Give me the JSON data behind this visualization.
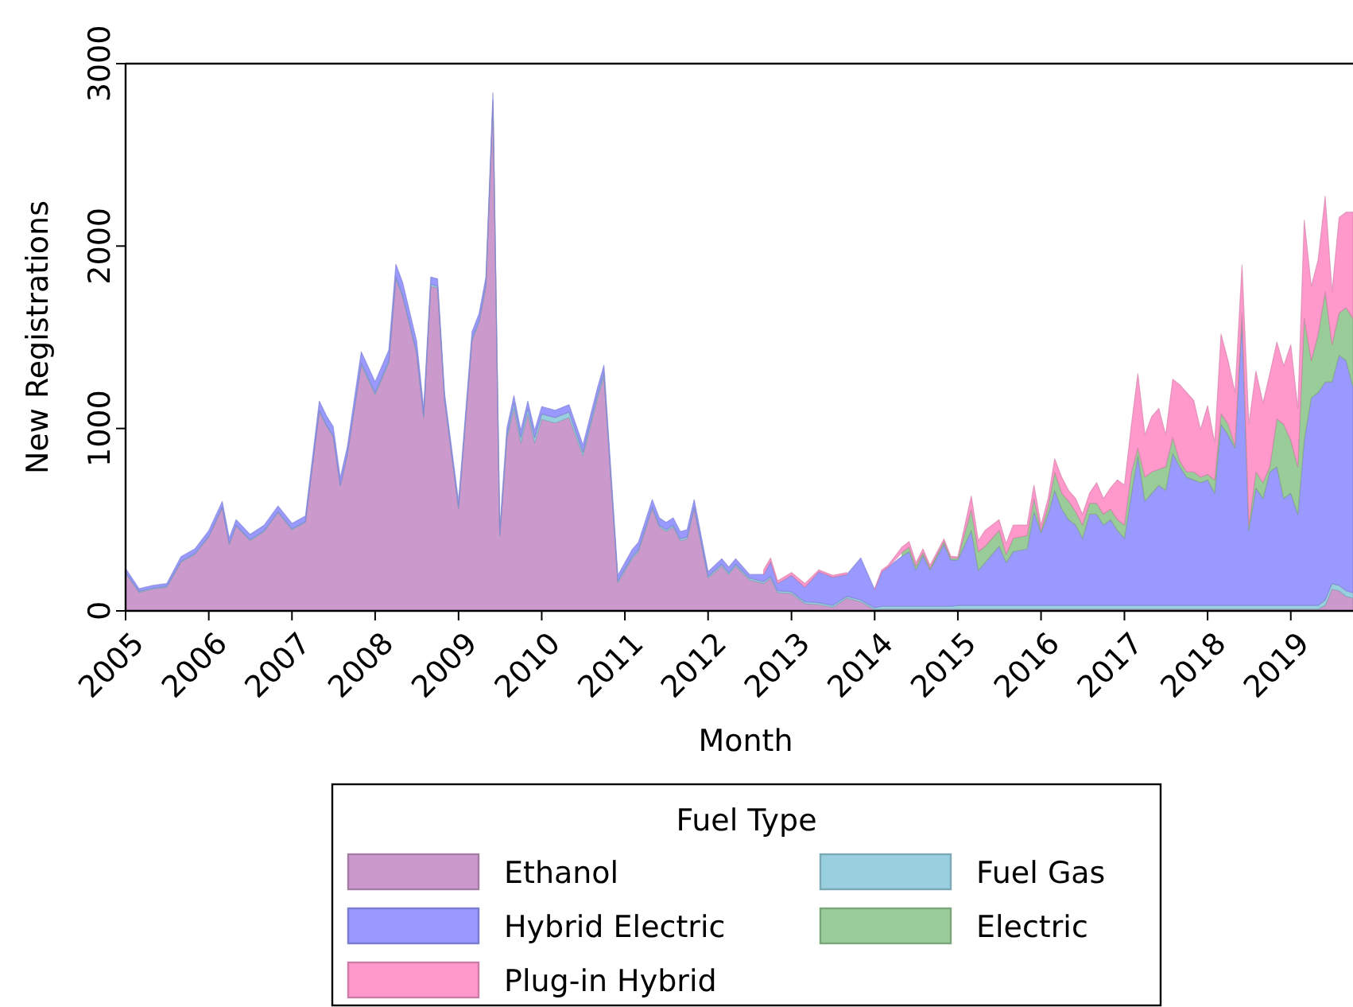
{
  "chart_data": {
    "type": "area",
    "stacked": true,
    "xlabel": "Month",
    "ylabel": "New Registrations",
    "legend_title": "Fuel Type",
    "legend": "bottom",
    "grid": false,
    "xlim": [
      "2005-01",
      "2019-10"
    ],
    "ylim": [
      0,
      3000
    ],
    "xticks": [
      "2005",
      "2006",
      "2007",
      "2008",
      "2009",
      "2010",
      "2011",
      "2012",
      "2013",
      "2014",
      "2015",
      "2016",
      "2017",
      "2018",
      "2019"
    ],
    "yticks": [
      0,
      1000,
      2000,
      3000
    ],
    "x": [
      "2005-01",
      "2005-03",
      "2005-05",
      "2005-07",
      "2005-09",
      "2005-11",
      "2006-01",
      "2006-03",
      "2006-04",
      "2006-05",
      "2006-07",
      "2006-09",
      "2006-11",
      "2007-01",
      "2007-03",
      "2007-05",
      "2007-06",
      "2007-07",
      "2007-08",
      "2007-09",
      "2007-11",
      "2008-01",
      "2008-03",
      "2008-04",
      "2008-05",
      "2008-07",
      "2008-08",
      "2008-09",
      "2008-10",
      "2008-11",
      "2009-01",
      "2009-03",
      "2009-04",
      "2009-05",
      "2009-06",
      "2009-07",
      "2009-08",
      "2009-09",
      "2009-10",
      "2009-11",
      "2009-12",
      "2010-01",
      "2010-03",
      "2010-05",
      "2010-07",
      "2010-09",
      "2010-10",
      "2010-12",
      "2011-02",
      "2011-03",
      "2011-05",
      "2011-06",
      "2011-07",
      "2011-08",
      "2011-09",
      "2011-10",
      "2011-11",
      "2012-01",
      "2012-03",
      "2012-04",
      "2012-05",
      "2012-07",
      "2012-09",
      "2012-10",
      "2012-11",
      "2013-01",
      "2013-03",
      "2013-05",
      "2013-07",
      "2013-09",
      "2013-11",
      "2014-01",
      "2014-02",
      "2014-03",
      "2014-05",
      "2014-06",
      "2014-07",
      "2014-08",
      "2014-09",
      "2014-11",
      "2014-12",
      "2015-01",
      "2015-03",
      "2015-04",
      "2015-05",
      "2015-07",
      "2015-08",
      "2015-09",
      "2015-11",
      "2015-12",
      "2016-01",
      "2016-02",
      "2016-03",
      "2016-04",
      "2016-05",
      "2016-06",
      "2016-07",
      "2016-08",
      "2016-09",
      "2016-10",
      "2016-11",
      "2016-12",
      "2017-01",
      "2017-02",
      "2017-03",
      "2017-04",
      "2017-05",
      "2017-06",
      "2017-07",
      "2017-08",
      "2017-09",
      "2017-10",
      "2017-11",
      "2017-12",
      "2018-01",
      "2018-02",
      "2018-03",
      "2018-04",
      "2018-05",
      "2018-06",
      "2018-07",
      "2018-08",
      "2018-09",
      "2018-10",
      "2018-11",
      "2018-12",
      "2019-01",
      "2019-02",
      "2019-03",
      "2019-04",
      "2019-05",
      "2019-06",
      "2019-07",
      "2019-08",
      "2019-09",
      "2019-10"
    ],
    "series": [
      {
        "name": "Ethanol",
        "color": "#cc99cc",
        "values": [
          208,
          102,
          120,
          130,
          267,
          310,
          405,
          565,
          365,
          465,
          385,
          435,
          540,
          445,
          485,
          1095,
          1015,
          955,
          685,
          855,
          1350,
          1186,
          1360,
          1820,
          1720,
          1410,
          1060,
          1780,
          1770,
          1150,
          560,
          1480,
          1580,
          1780,
          2790,
          410,
          940,
          1110,
          920,
          1080,
          920,
          1050,
          1030,
          1060,
          850,
          1156,
          1287,
          155,
          285,
          325,
          560,
          460,
          435,
          460,
          385,
          395,
          560,
          180,
          246,
          200,
          246,
          170,
          150,
          180,
          100,
          95,
          40,
          35,
          20,
          70,
          50,
          7,
          10,
          10,
          10,
          10,
          10,
          10,
          10,
          10,
          10,
          10,
          10,
          10,
          10,
          10,
          10,
          10,
          10,
          10,
          10,
          10,
          10,
          10,
          10,
          10,
          10,
          10,
          10,
          10,
          10,
          10,
          10,
          10,
          10,
          10,
          10,
          10,
          10,
          10,
          10,
          10,
          10,
          10,
          10,
          10,
          10,
          10,
          10,
          10,
          10,
          10,
          10,
          10,
          10,
          10,
          10,
          10,
          10,
          10,
          10,
          30,
          120,
          110,
          80,
          70
        ]
      },
      {
        "name": "Fuel Gas",
        "color": "#99d0e0",
        "values": [
          5,
          5,
          5,
          5,
          5,
          5,
          5,
          5,
          5,
          5,
          5,
          5,
          5,
          5,
          5,
          5,
          5,
          5,
          5,
          5,
          10,
          10,
          10,
          10,
          10,
          10,
          10,
          10,
          10,
          10,
          10,
          10,
          10,
          10,
          10,
          10,
          20,
          30,
          30,
          30,
          30,
          30,
          30,
          30,
          20,
          20,
          20,
          10,
          10,
          10,
          10,
          10,
          10,
          10,
          10,
          10,
          10,
          10,
          10,
          10,
          10,
          10,
          10,
          10,
          10,
          10,
          10,
          10,
          10,
          10,
          10,
          10,
          15,
          15,
          15,
          15,
          15,
          15,
          15,
          15,
          15,
          20,
          20,
          20,
          20,
          20,
          20,
          20,
          20,
          20,
          20,
          20,
          20,
          20,
          20,
          20,
          20,
          20,
          20,
          20,
          20,
          20,
          20,
          20,
          20,
          20,
          20,
          20,
          20,
          20,
          20,
          20,
          20,
          20,
          20,
          20,
          20,
          20,
          20,
          20,
          20,
          20,
          20,
          20,
          20,
          20,
          20,
          20,
          20,
          20,
          20,
          30,
          30,
          30,
          30,
          30
        ]
      },
      {
        "name": "Hybrid Electric",
        "color": "#9999ff",
        "values": [
          20,
          15,
          15,
          15,
          25,
          25,
          30,
          30,
          30,
          30,
          30,
          30,
          30,
          30,
          30,
          50,
          50,
          50,
          40,
          40,
          60,
          60,
          60,
          70,
          70,
          60,
          40,
          40,
          40,
          30,
          30,
          40,
          40,
          40,
          40,
          30,
          40,
          40,
          40,
          40,
          40,
          40,
          40,
          40,
          40,
          40,
          40,
          30,
          40,
          40,
          40,
          40,
          40,
          40,
          40,
          40,
          40,
          25,
          30,
          30,
          30,
          20,
          40,
          80,
          40,
          90,
          80,
          170,
          155,
          120,
          230,
          100,
          190,
          215,
          275,
          300,
          200,
          280,
          200,
          340,
          255,
          250,
          410,
          192,
          235,
          325,
          235,
          295,
          310,
          514,
          400,
          500,
          630,
          528,
          470,
          441,
          368,
          500,
          500,
          441,
          470,
          412,
          368,
          615,
          819,
          572,
          615,
          659,
          630,
          833,
          760,
          703,
          688,
          673,
          688,
          615,
          993,
          935,
          862,
          1574,
          412,
          644,
          586,
          732,
          760,
          586,
          615,
          500,
          906,
          1138,
          1167,
          1195,
          1105,
          1261,
          1262,
          1126
        ]
      },
      {
        "name": "Electric",
        "color": "#99cc99",
        "values": [
          null,
          null,
          null,
          null,
          null,
          null,
          null,
          null,
          null,
          null,
          null,
          null,
          null,
          null,
          null,
          null,
          null,
          null,
          null,
          null,
          null,
          null,
          null,
          null,
          null,
          null,
          null,
          null,
          null,
          null,
          null,
          null,
          null,
          null,
          null,
          null,
          null,
          null,
          null,
          null,
          null,
          null,
          null,
          null,
          null,
          null,
          null,
          null,
          null,
          null,
          null,
          null,
          null,
          null,
          null,
          null,
          null,
          null,
          null,
          null,
          null,
          null,
          null,
          null,
          null,
          null,
          null,
          null,
          null,
          null,
          null,
          null,
          null,
          null,
          20,
          25,
          20,
          15,
          10,
          15,
          10,
          10,
          115,
          103,
          90,
          87,
          45,
          73,
          73,
          72,
          12,
          42,
          102,
          87,
          102,
          73,
          73,
          60,
          60,
          59,
          58,
          58,
          73,
          117,
          43,
          131,
          117,
          87,
          130,
          87,
          30,
          29,
          44,
          30,
          30,
          73,
          59,
          58,
          14,
          29,
          29,
          88,
          87,
          28,
          263,
          407,
          291,
          260,
          668,
          204,
          320,
          495,
          205,
          232,
          290,
          378
        ]
      },
      {
        "name": "Plug-in Hybrid",
        "color": "#ff99cc",
        "values": [
          null,
          null,
          null,
          null,
          null,
          null,
          null,
          null,
          null,
          null,
          null,
          null,
          null,
          null,
          null,
          null,
          null,
          null,
          null,
          null,
          null,
          null,
          null,
          null,
          null,
          null,
          null,
          null,
          null,
          null,
          null,
          null,
          null,
          null,
          null,
          null,
          null,
          null,
          null,
          null,
          null,
          null,
          null,
          null,
          null,
          null,
          null,
          null,
          null,
          null,
          null,
          null,
          null,
          null,
          null,
          null,
          null,
          null,
          null,
          null,
          null,
          null,
          25,
          20,
          15,
          15,
          20,
          10,
          10,
          10,
          null,
          5,
          10,
          10,
          30,
          30,
          20,
          20,
          15,
          15,
          10,
          6,
          75,
          59,
          87,
          58,
          59,
          73,
          58,
          73,
          29,
          44,
          72,
          87,
          58,
          72,
          59,
          55,
          113,
          86,
          116,
          218,
          218,
          261,
          408,
          232,
          304,
          334,
          175,
          320,
          420,
          435,
          392,
          261,
          377,
          203,
          435,
          348,
          291,
          262,
          552,
          552,
          437,
          510,
          420,
          320,
          523,
          320,
          538,
          407,
          407,
          523,
          290,
          523,
          524,
          582
        ]
      }
    ]
  }
}
